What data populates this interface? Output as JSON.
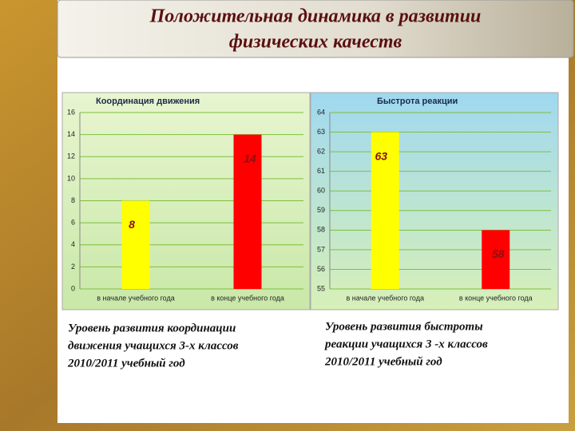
{
  "title": [
    "Положительная динамика в развитии",
    "физических качеств"
  ],
  "chart_data": [
    {
      "type": "bar",
      "title": "Координация движения",
      "categories": [
        "в начале учебного года",
        "в конце учебного года"
      ],
      "values": [
        8,
        14
      ],
      "colors": [
        "#ffff00",
        "#ff0000"
      ],
      "ylim": [
        0,
        16
      ],
      "yticks": [
        0,
        2,
        4,
        6,
        8,
        10,
        12,
        14,
        16
      ],
      "grid": true,
      "caption": [
        "Уровень развития координации",
        "движения учащихся 3-х классов",
        "2010/2011 учебный год"
      ]
    },
    {
      "type": "bar",
      "title": "Быстрота реакции",
      "categories": [
        "в начале учебного года",
        "в конце учебного года"
      ],
      "values": [
        63,
        58
      ],
      "colors": [
        "#ffff00",
        "#ff0000"
      ],
      "ylim": [
        55,
        64
      ],
      "yticks": [
        55,
        56,
        57,
        58,
        59,
        60,
        61,
        62,
        63,
        64
      ],
      "grid": true,
      "caption": [
        "Уровень развития быстроты",
        "реакции  учащихся 3 -х классов",
        "2010/2011 учебный год"
      ]
    }
  ]
}
